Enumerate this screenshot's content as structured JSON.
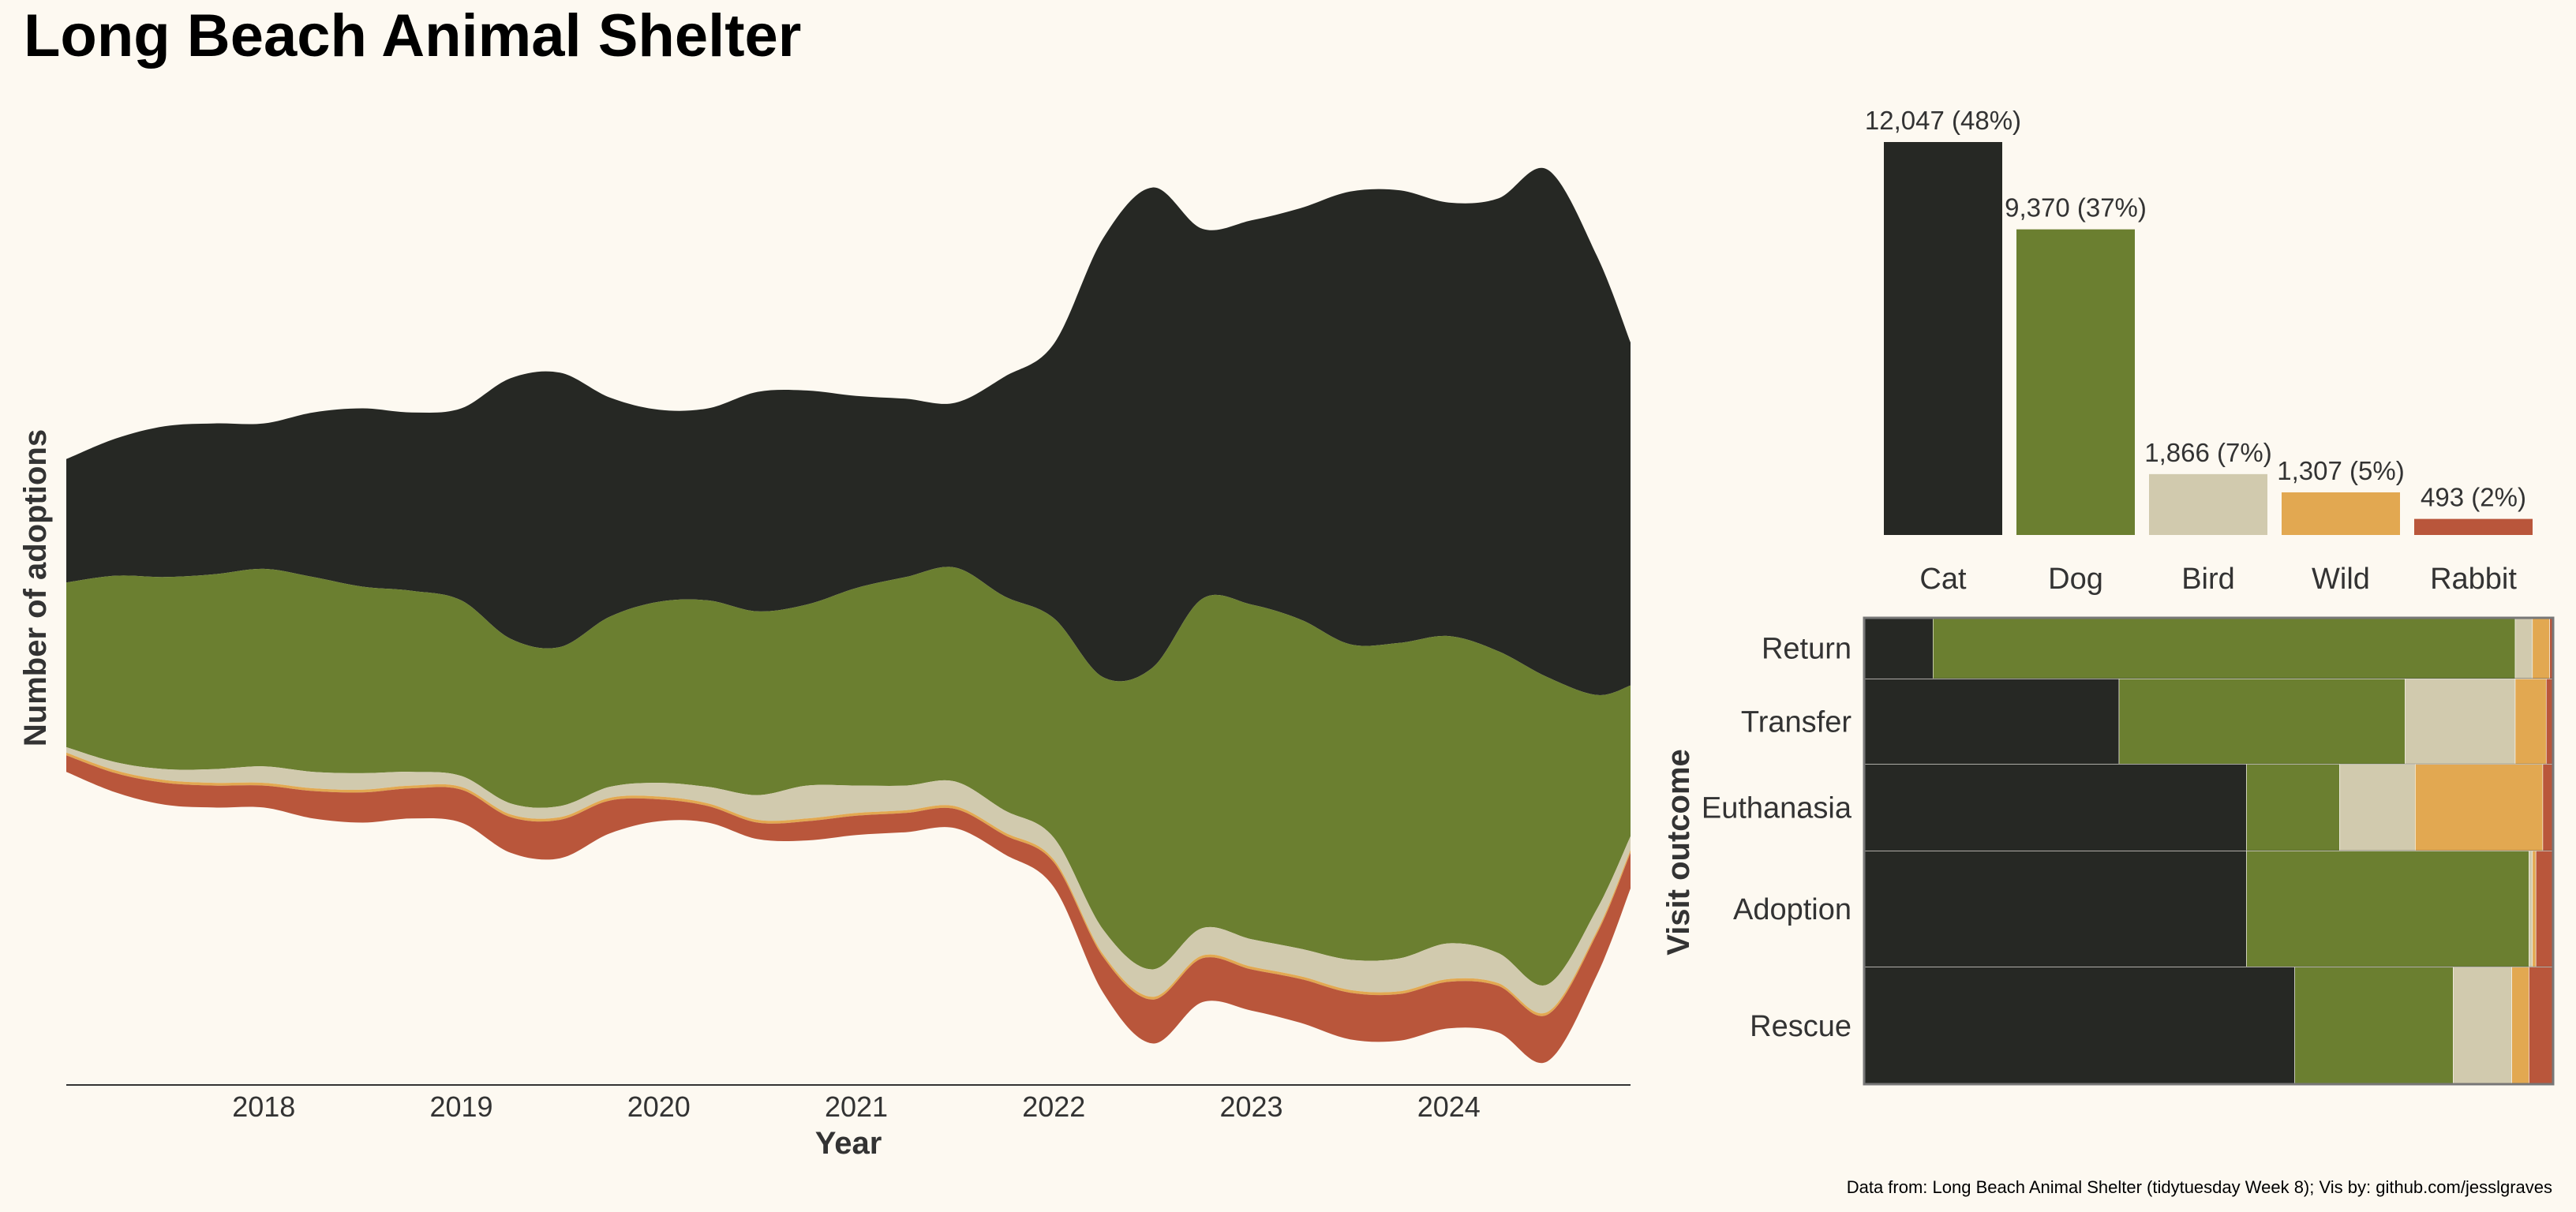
{
  "title": "Long Beach Animal Shelter",
  "caption": "Data from: Long Beach Animal Shelter (tidytuesday Week 8); Vis by: github.com/jesslgraves",
  "colors": {
    "Cat": "#262824",
    "Dog": "#6b7f30",
    "Bird": "#d1caae",
    "Wild": "#e2a851",
    "Rabbit": "#b9563b",
    "text": "#333333",
    "background": "#fdf9f1"
  },
  "chart_data": [
    {
      "id": "streamgraph",
      "type": "area",
      "subtype": "streamgraph",
      "title": "",
      "xlabel": "Year",
      "ylabel": "Number of adoptions",
      "x_ticks": [
        "2018",
        "2019",
        "2020",
        "2021",
        "2022",
        "2023",
        "2024"
      ],
      "x": [
        2017.0,
        2017.25,
        2017.5,
        2017.75,
        2018.0,
        2018.25,
        2018.5,
        2018.75,
        2019.0,
        2019.25,
        2019.5,
        2019.75,
        2020.0,
        2020.25,
        2020.5,
        2020.75,
        2021.0,
        2021.25,
        2021.5,
        2021.75,
        2022.0,
        2022.25,
        2022.5,
        2022.75,
        2023.0,
        2023.25,
        2023.5,
        2023.75,
        2024.0,
        2024.25,
        2024.5,
        2024.75,
        2024.92
      ],
      "series": [
        {
          "name": "Rabbit",
          "values": [
            6,
            7,
            8,
            8,
            8,
            10,
            11,
            11,
            12,
            13,
            14,
            12,
            8,
            6,
            6,
            7,
            7,
            7,
            7,
            7,
            9,
            13,
            16,
            16,
            15,
            16,
            17,
            17,
            17,
            17,
            17,
            15,
            13
          ]
        },
        {
          "name": "Wild",
          "values": [
            1,
            1,
            1,
            1,
            1,
            1,
            1,
            1,
            1,
            1,
            1,
            1,
            1,
            1,
            1,
            1,
            1,
            1,
            1,
            1,
            1,
            1,
            1,
            1,
            1,
            1,
            1,
            1,
            1,
            1,
            1,
            1,
            1
          ]
        },
        {
          "name": "Bird",
          "values": [
            2,
            3,
            4,
            5,
            6,
            6,
            6,
            5,
            4,
            4,
            4,
            4,
            5,
            6,
            9,
            12,
            10,
            9,
            9,
            8,
            8,
            9,
            10,
            10,
            10,
            10,
            11,
            12,
            13,
            11,
            10,
            8,
            5
          ]
        },
        {
          "name": "Dog",
          "values": [
            60,
            68,
            70,
            71,
            72,
            71,
            68,
            66,
            64,
            60,
            58,
            62,
            66,
            68,
            67,
            66,
            72,
            76,
            78,
            78,
            80,
            92,
            110,
            120,
            122,
            120,
            115,
            115,
            112,
            110,
            112,
            78,
            55
          ]
        },
        {
          "name": "Cat",
          "values": [
            45,
            50,
            55,
            55,
            53,
            60,
            65,
            65,
            70,
            95,
            100,
            80,
            70,
            70,
            80,
            78,
            70,
            65,
            60,
            80,
            100,
            160,
            175,
            135,
            140,
            150,
            165,
            165,
            158,
            165,
            185,
            160,
            125
          ]
        }
      ]
    },
    {
      "id": "species-bar",
      "type": "bar",
      "title": "",
      "categories": [
        "Cat",
        "Dog",
        "Bird",
        "Wild",
        "Rabbit"
      ],
      "values": [
        12047,
        9370,
        1866,
        1307,
        493
      ],
      "labels": [
        "12,047 (48%)",
        "9,370 (37%)",
        "1,866 (7%)",
        "1,307 (5%)",
        "493 (2%)"
      ],
      "ylim": [
        0,
        12047
      ]
    },
    {
      "id": "outcome-mosaic",
      "type": "bar",
      "subtype": "mosaic",
      "title": "",
      "ylabel": "Visit outcome",
      "categories": [
        "Return",
        "Transfer",
        "Euthanasia",
        "Adoption",
        "Rescue"
      ],
      "row_share": [
        0.131,
        0.183,
        0.186,
        0.249,
        0.251
      ],
      "series": [
        {
          "name": "Cat",
          "values": [
            0.1,
            0.37,
            0.555,
            0.555,
            0.625
          ]
        },
        {
          "name": "Dog",
          "values": [
            0.845,
            0.415,
            0.135,
            0.41,
            0.23
          ]
        },
        {
          "name": "Bird",
          "values": [
            0.025,
            0.16,
            0.11,
            0.005,
            0.085
          ]
        },
        {
          "name": "Wild",
          "values": [
            0.025,
            0.045,
            0.185,
            0.005,
            0.025
          ]
        },
        {
          "name": "Rabbit",
          "values": [
            0.005,
            0.01,
            0.015,
            0.025,
            0.035
          ]
        }
      ]
    }
  ]
}
